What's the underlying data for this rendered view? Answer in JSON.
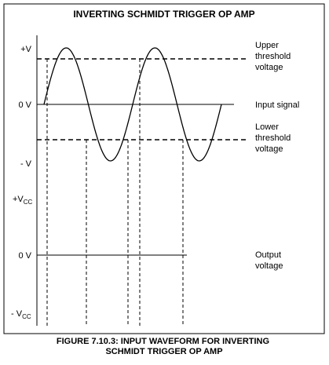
{
  "title": "INVERTING SCHMIDT TRIGGER OP AMP",
  "input_axis_labels": {
    "plus": "+V",
    "zero": "0 V",
    "minus": "- V"
  },
  "output_axis_labels": {
    "plus": {
      "main": "+V",
      "sub": "CC"
    },
    "zero": "0 V",
    "minus": {
      "main": "- V",
      "sub": "CC"
    }
  },
  "right_labels": {
    "upper_threshold": [
      "Upper",
      "threshold",
      "voltage"
    ],
    "input_signal": "Input signal",
    "lower_threshold": [
      "Lower",
      "threshold",
      "voltage"
    ],
    "output_voltage": [
      "Output",
      "voltage"
    ]
  },
  "caption": [
    "FIGURE 7.10.3: INPUT WAVEFORM FOR INVERTING",
    "SCHMIDT TRIGGER OP AMP"
  ]
}
